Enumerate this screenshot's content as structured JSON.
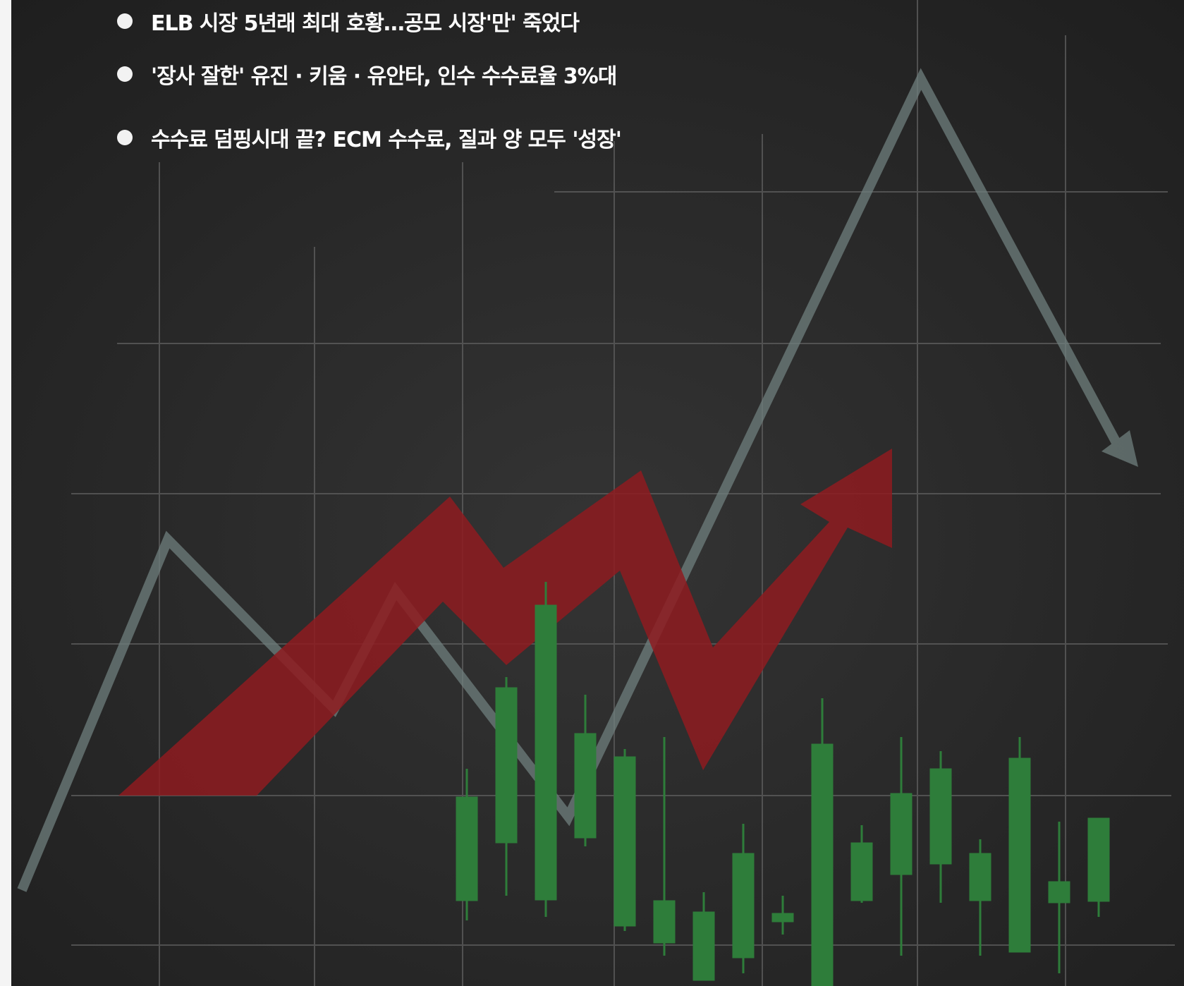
{
  "headlines": [
    {
      "text": "ELB 시장 5년래 최대 호황…공모 시장'만' 죽었다"
    },
    {
      "text": "'장사 잘한' 유진 · 키움 · 유안타, 인수 수수료율 3%대"
    },
    {
      "text": "수수료 덤핑시대 끝? ECM 수수료, 질과 양 모두 '성장'"
    }
  ],
  "illustration": {
    "background_color": "#2a2a2a",
    "grid_color": "#5a5a5a",
    "trend_line_color": "#6f7f7d",
    "arrow_color": "#8e1b20",
    "candle_color": "#2e7d3a"
  }
}
